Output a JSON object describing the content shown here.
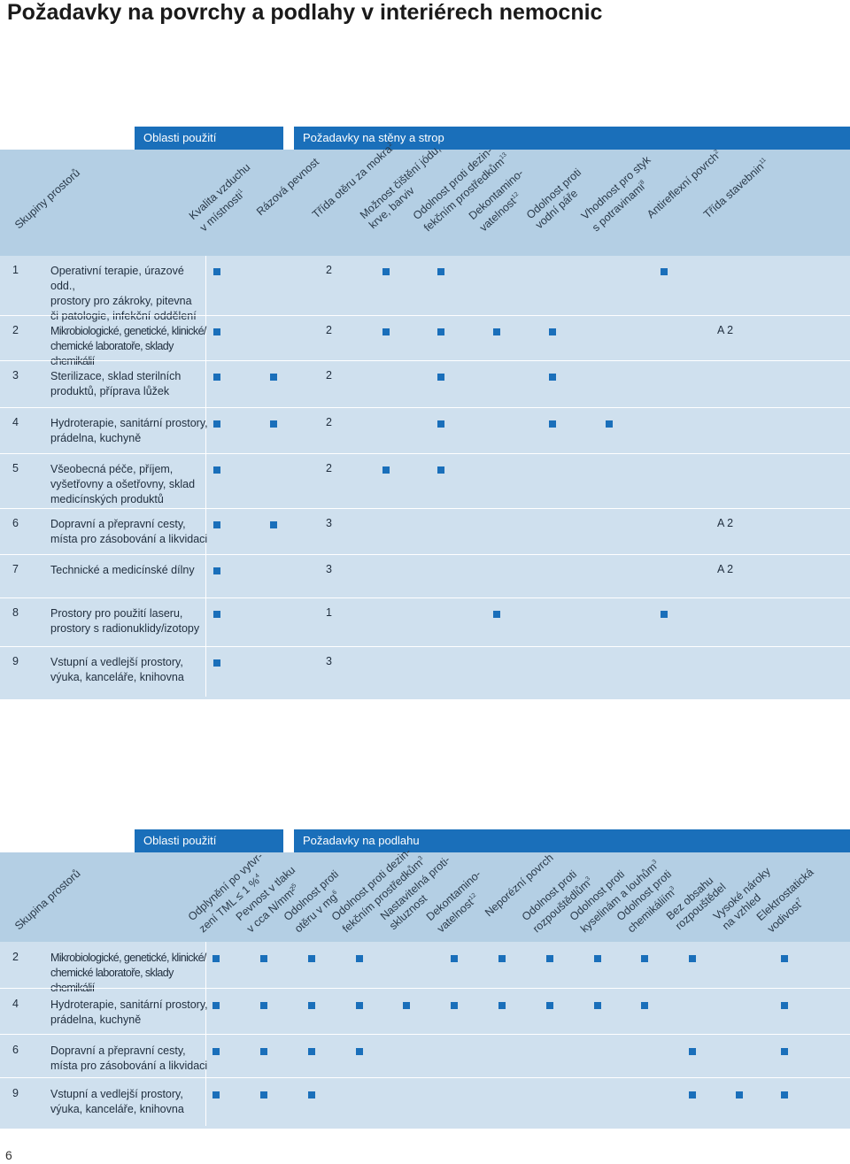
{
  "title": "Požadavky na povrchy a podlahy v interiérech nemocnic",
  "page_number": "6",
  "table1": {
    "bar_left": "Oblasti použití",
    "bar_right": "Požadavky na stěny a strop",
    "group_header": "Skupiny prostorů",
    "columns": [
      {
        "l1": "Kvalita vzduchu",
        "l2": "v místnosti",
        "sup": "1"
      },
      {
        "l1": "Rázová pevnost",
        "l2": "",
        "sup": ""
      },
      {
        "l1": "Třída otěru za mokra",
        "l2": "",
        "sup": "2"
      },
      {
        "l1": "Možnost čištění jódu,",
        "l2": "krve, barviv",
        "sup": ""
      },
      {
        "l1": "Odolnost proti dezin-",
        "l2": "fekčním prostředkům",
        "sup": "13"
      },
      {
        "l1": "Dekontamino-",
        "l2": "vatelnost",
        "sup": "12"
      },
      {
        "l1": "Odolnost proti",
        "l2": "vodní páře",
        "sup": ""
      },
      {
        "l1": "Vhodnost pro styk",
        "l2": "s potravinami",
        "sup": "8"
      },
      {
        "l1": "Antireflexní povrch",
        "l2": "",
        "sup": "2"
      },
      {
        "l1": "Třída stavebnin",
        "l2": "",
        "sup": "11"
      }
    ],
    "rows": [
      {
        "num": "1",
        "lines": [
          "Operativní terapie, úrazové odd.,",
          "prostory pro zákroky, pitevna",
          "či patologie, infekční oddělení"
        ],
        "cells": [
          "sq",
          "",
          "2",
          "sq",
          "sq",
          "",
          "",
          "",
          "sq",
          ""
        ],
        "cond": false
      },
      {
        "num": "2",
        "lines": [
          "Mikrobiologické, genetické, klinické/",
          "chemické laboratoře, sklady chemikálií"
        ],
        "cells": [
          "sq",
          "",
          "2",
          "sq",
          "sq",
          "sq",
          "sq",
          "",
          "",
          "A 2"
        ],
        "cond": true
      },
      {
        "num": "3",
        "lines": [
          "Sterilizace, sklad sterilních",
          "produktů, příprava lůžek"
        ],
        "cells": [
          "sq",
          "sq",
          "2",
          "",
          "sq",
          "",
          "sq",
          "",
          "",
          ""
        ],
        "cond": false
      },
      {
        "num": "4",
        "lines": [
          "Hydroterapie, sanitární prostory,",
          "prádelna, kuchyně"
        ],
        "cells": [
          "sq",
          "sq",
          "2",
          "",
          "sq",
          "",
          "sq",
          "sq",
          "",
          ""
        ],
        "cond": false
      },
      {
        "num": "5",
        "lines": [
          "Všeobecná péče, příjem,",
          "vyšetřovny a ošetřovny, sklad",
          "medicínských produktů"
        ],
        "cells": [
          "sq",
          "",
          "2",
          "sq",
          "sq",
          "",
          "",
          "",
          "",
          ""
        ],
        "cond": false
      },
      {
        "num": "6",
        "lines": [
          "Dopravní a přepravní cesty,",
          "místa pro zásobování a likvidaci"
        ],
        "cells": [
          "sq",
          "sq",
          "3",
          "",
          "",
          "",
          "",
          "",
          "",
          "A 2"
        ],
        "cond": false
      },
      {
        "num": "7",
        "lines": [
          "Technické a medicínské dílny"
        ],
        "cells": [
          "sq",
          "",
          "3",
          "",
          "",
          "",
          "",
          "",
          "",
          "A 2"
        ],
        "cond": false
      },
      {
        "num": "8",
        "lines": [
          "Prostory pro použití laseru,",
          "prostory s radionuklidy/izotopy"
        ],
        "cells": [
          "sq",
          "",
          "1",
          "",
          "",
          "sq",
          "",
          "",
          "sq",
          ""
        ],
        "cond": false
      },
      {
        "num": "9",
        "lines": [
          "Vstupní a vedlejší prostory,",
          "výuka, kanceláře, knihovna"
        ],
        "cells": [
          "sq",
          "",
          "3",
          "",
          "",
          "",
          "",
          "",
          "",
          ""
        ],
        "cond": false
      }
    ]
  },
  "table2": {
    "bar_left": "Oblasti použití",
    "bar_right": "Požadavky na podlahu",
    "group_header": "Skupina prostorů",
    "columns": [
      {
        "l1": "Odplynění po vytvr-",
        "l2": "zení TML ≤ 1 %",
        "sup": "4"
      },
      {
        "l1": "Pevnost v tlaku",
        "l2": "v cca N/mm²",
        "sup": "5"
      },
      {
        "l1": "Odolnost proti",
        "l2": "otěru v mg",
        "sup": "6"
      },
      {
        "l1": "Odolnost proti dezin-",
        "l2": "fekčním prostředkům",
        "sup": "3"
      },
      {
        "l1": "Nastavitelná proti-",
        "l2": "skluznost",
        "sup": ""
      },
      {
        "l1": "Dekontamino-",
        "l2": "vatelnost",
        "sup": "12"
      },
      {
        "l1": "Neporézní povrch",
        "l2": "",
        "sup": ""
      },
      {
        "l1": "Odolnost proti",
        "l2": "rozpouštědlům",
        "sup": "3"
      },
      {
        "l1": "Odolnost proti",
        "l2": "kyselinám a louhům",
        "sup": "3"
      },
      {
        "l1": "Odolnost proti",
        "l2": "chemikáliím",
        "sup": "3"
      },
      {
        "l1": "Bez obsahu",
        "l2": "rozpouštědel",
        "sup": ""
      },
      {
        "l1": "Vysoké nároky",
        "l2": "na vzhled",
        "sup": ""
      },
      {
        "l1": "Elektrostatická",
        "l2": "vodivost",
        "sup": "7"
      }
    ],
    "rows": [
      {
        "num": "2",
        "lines": [
          "Mikrobiologické, genetické, klinické/",
          "chemické laboratoře, sklady chemikálií"
        ],
        "cells": [
          "sq",
          "sq",
          "sq",
          "sq",
          "",
          "sq",
          "sq",
          "sq",
          "sq",
          "sq",
          "sq",
          "",
          "sq"
        ],
        "cond": true
      },
      {
        "num": "4",
        "lines": [
          "Hydroterapie, sanitární prostory,",
          "prádelna, kuchyně"
        ],
        "cells": [
          "sq",
          "sq",
          "sq",
          "sq",
          "sq",
          "sq",
          "sq",
          "sq",
          "sq",
          "sq",
          "",
          "",
          "sq"
        ],
        "cond": false
      },
      {
        "num": "6",
        "lines": [
          "Dopravní a přepravní cesty,",
          "místa pro zásobování a likvidaci"
        ],
        "cells": [
          "sq",
          "sq",
          "sq",
          "sq",
          "",
          "",
          "",
          "",
          "",
          "",
          "sq",
          "",
          "sq"
        ],
        "cond": false
      },
      {
        "num": "9",
        "lines": [
          "Vstupní a vedlejší prostory,",
          "výuka, kanceláře, knihovna"
        ],
        "cells": [
          "sq",
          "sq",
          "sq",
          "",
          "",
          "",
          "",
          "",
          "",
          "",
          "sq",
          "sq",
          "sq"
        ],
        "cond": false
      }
    ]
  }
}
